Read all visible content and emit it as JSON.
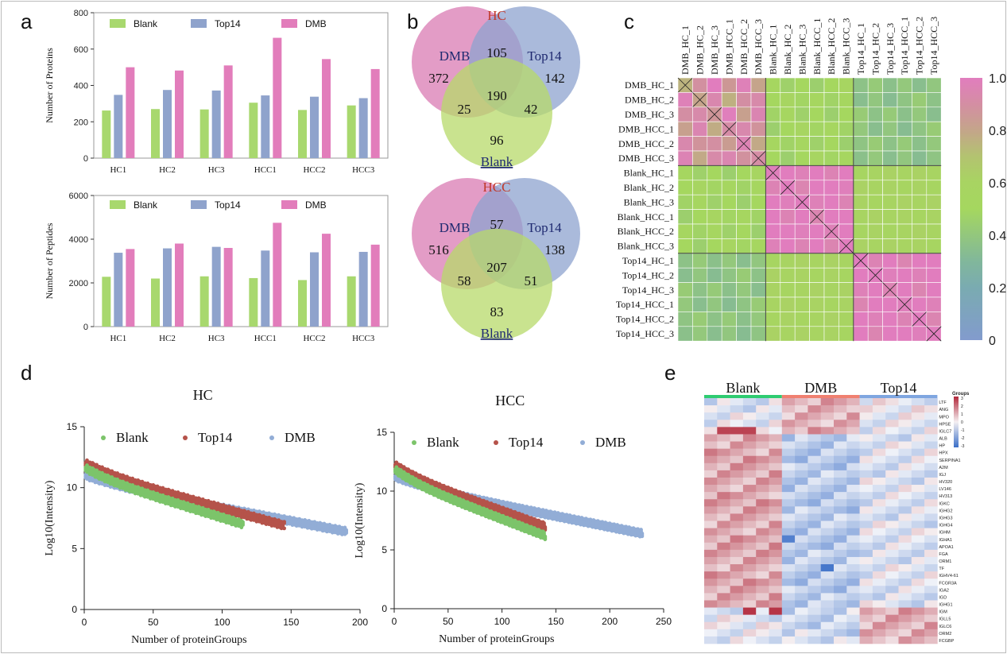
{
  "panels": {
    "a": "a",
    "b": "b",
    "c": "c",
    "d": "d",
    "e": "e"
  },
  "colors": {
    "blank": "#a8d86e",
    "top14": "#8fa3cc",
    "dmb": "#e27dbb",
    "dmb_venn": "#d97bb3",
    "top14_venn": "#8ea3cf",
    "blank_venn": "#b7d969",
    "hc_label": "#c0392b",
    "blank_label": "#2c3e8f",
    "heat_red": "#b2283b",
    "heat_blue": "#3b6fc8",
    "green_bar": "#2ecc71",
    "salmon_bar": "#f08070",
    "blue_bar": "#7fa6e0"
  },
  "chart_data": [
    {
      "id": "proteins",
      "type": "bar",
      "title": "",
      "xlabel": "",
      "ylabel": "Number of Proteins",
      "ylim": [
        0,
        800
      ],
      "yticks": [
        "0",
        "200",
        "400",
        "600",
        "800"
      ],
      "categories": [
        "HC1",
        "HC2",
        "HC3",
        "HCC1",
        "HCC2",
        "HCC3"
      ],
      "series": [
        {
          "name": "Blank",
          "values": [
            262,
            270,
            268,
            305,
            265,
            290
          ]
        },
        {
          "name": "Top14",
          "values": [
            348,
            375,
            372,
            345,
            338,
            330
          ]
        },
        {
          "name": "DMB",
          "values": [
            500,
            482,
            510,
            662,
            545,
            490
          ]
        }
      ]
    },
    {
      "id": "peptides",
      "type": "bar",
      "title": "",
      "xlabel": "",
      "ylabel": "Number of Peptides",
      "ylim": [
        0,
        6000
      ],
      "yticks": [
        "0",
        "2000",
        "4000",
        "6000"
      ],
      "categories": [
        "HC1",
        "HC2",
        "HC3",
        "HCC1",
        "HCC2",
        "HCC3"
      ],
      "series": [
        {
          "name": "Blank",
          "values": [
            2280,
            2200,
            2300,
            2220,
            2130,
            2300
          ]
        },
        {
          "name": "Top14",
          "values": [
            3380,
            3580,
            3650,
            3480,
            3400,
            3420
          ]
        },
        {
          "name": "DMB",
          "values": [
            3550,
            3800,
            3600,
            4750,
            4250,
            3750
          ]
        }
      ]
    },
    {
      "id": "venn_hc",
      "type": "venn",
      "title": "HC",
      "sets": [
        "DMB",
        "Top14",
        "Blank"
      ],
      "regions": {
        "dmb_only": "372",
        "top14_only": "142",
        "blank_only": "96",
        "dmb_top14": "105",
        "dmb_blank": "25",
        "top14_blank": "42",
        "all": "190"
      }
    },
    {
      "id": "venn_hcc",
      "type": "venn",
      "title": "HCC",
      "sets": [
        "DMB",
        "Top14",
        "Blank"
      ],
      "regions": {
        "dmb_only": "516",
        "top14_only": "138",
        "blank_only": "83",
        "dmb_top14": "57",
        "dmb_blank": "58",
        "top14_blank": "51",
        "all": "207"
      }
    },
    {
      "id": "correlation",
      "type": "heatmap",
      "samples": [
        "DMB_HC_1",
        "DMB_HC_2",
        "DMB_HC_3",
        "DMB_HCC_1",
        "DMB_HCC_2",
        "DMB_HCC_3",
        "Blank_HC_1",
        "Blank_HC_2",
        "Blank_HC_3",
        "Blank_HCC_1",
        "Blank_HCC_2",
        "Blank_HCC_3",
        "Top14_HC_1",
        "Top14_HC_2",
        "Top14_HC_3",
        "Top14_HCC_1",
        "Top14_HCC_2",
        "Top14_HCC_3"
      ],
      "groups": [
        "DMB",
        "Blank",
        "Top14"
      ],
      "group_corr": [
        [
          0.92,
          0.5,
          0.38
        ],
        [
          0.5,
          1.0,
          0.6
        ],
        [
          0.38,
          0.6,
          1.0
        ]
      ],
      "colorbar_ticks": [
        "0",
        "0.2",
        "0.4",
        "0.6",
        "0.8",
        "1.0"
      ],
      "colorbar_range": [
        0,
        1
      ]
    },
    {
      "id": "rank_hc",
      "type": "scatter",
      "title": "HC",
      "xlabel": "Number of proteinGroups",
      "ylabel": "Log10(Intensity)",
      "xlim": [
        0,
        200
      ],
      "ylim": [
        0,
        15
      ],
      "xticks": [
        "0",
        "50",
        "100",
        "150",
        "200"
      ],
      "yticks": [
        "0",
        "5",
        "10",
        "15"
      ],
      "series": [
        {
          "name": "Blank",
          "n": 115,
          "start": 11.6,
          "end": 7.0
        },
        {
          "name": "Top14",
          "n": 145,
          "start": 12.0,
          "end": 6.9
        },
        {
          "name": "DMB",
          "n": 190,
          "start": 11.0,
          "end": 6.4
        }
      ]
    },
    {
      "id": "rank_hcc",
      "type": "scatter",
      "title": "HCC",
      "xlabel": "Number of proteinGroups",
      "ylabel": "Log10(Intensity)",
      "xlim": [
        0,
        250
      ],
      "ylim": [
        0,
        15
      ],
      "xticks": [
        "0",
        "50",
        "100",
        "150",
        "200",
        "250"
      ],
      "yticks": [
        "0",
        "5",
        "10",
        "15"
      ],
      "series": [
        {
          "name": "Blank",
          "n": 140,
          "start": 11.8,
          "end": 6.2
        },
        {
          "name": "Top14",
          "n": 140,
          "start": 12.2,
          "end": 7.0
        },
        {
          "name": "DMB",
          "n": 230,
          "start": 11.2,
          "end": 6.4
        }
      ]
    },
    {
      "id": "expression_heatmap",
      "type": "heatmap",
      "groups": [
        "Blank",
        "DMB",
        "Top14"
      ],
      "legend_title": "Groups",
      "scale_ticks": [
        "3",
        "2",
        "1",
        "0",
        "-1",
        "-2",
        "-3"
      ],
      "genes": [
        "LTF",
        "ANG",
        "MPO",
        "HPSE",
        "IGLC7",
        "ALB",
        "HP",
        "HPX",
        "SERPINA1",
        "A2M",
        "IGJ",
        "HV320",
        "LV146",
        "HV313",
        "IGKC",
        "IGHG2",
        "IGHG3",
        "IGHG4",
        "IGHM",
        "IGHA1",
        "APOA1",
        "FGA",
        "ORM1",
        "TF",
        "IGHV4-61",
        "FCGR3A",
        "IGA2",
        "IGD",
        "IGHG1",
        "IGM",
        "IGLL5",
        "IGLC6",
        "ORM2",
        "FCGBP"
      ],
      "columns_per_group": 6
    }
  ]
}
